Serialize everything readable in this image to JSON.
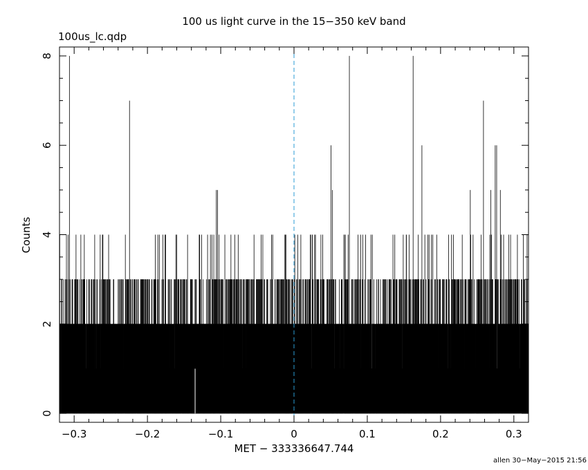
{
  "chart_data": {
    "type": "bar",
    "title": "100 us light curve in the 15−350 keV band",
    "filename": "100us_lc.qdp",
    "xlabel": "MET − 333336647.744",
    "ylabel": "Counts",
    "xlim": [
      -0.32,
      0.32
    ],
    "ylim": [
      -0.2,
      8.2
    ],
    "x_ticks": [
      -0.3,
      -0.2,
      -0.1,
      0,
      0.1,
      0.2,
      0.3
    ],
    "x_tick_labels": [
      "−0.3",
      "−0.2",
      "−0.1",
      "0",
      "0.1",
      "0.2",
      "0.3"
    ],
    "y_ticks": [
      0,
      2,
      4,
      6,
      8
    ],
    "y_tick_labels": [
      "0",
      "2",
      "4",
      "6",
      "8"
    ],
    "bin_width": 0.0001,
    "baseline_counts": 1,
    "reference_line": {
      "x": 0,
      "style": "dashed",
      "color": "#2a9bd4"
    },
    "notable_bins": [
      {
        "x": -0.3065,
        "y": 8
      },
      {
        "x": -0.2245,
        "y": 7
      },
      {
        "x": -0.106,
        "y": 5
      },
      {
        "x": -0.1045,
        "y": 5
      },
      {
        "x": 0.0505,
        "y": 6
      },
      {
        "x": 0.0755,
        "y": 8
      },
      {
        "x": 0.1625,
        "y": 8
      },
      {
        "x": 0.1745,
        "y": 6
      },
      {
        "x": 0.2585,
        "y": 7
      },
      {
        "x": 0.2745,
        "y": 6
      },
      {
        "x": 0.2765,
        "y": 6
      },
      {
        "x": 0.0525,
        "y": 5
      },
      {
        "x": 0.2405,
        "y": 5
      },
      {
        "x": 0.2685,
        "y": 5
      },
      {
        "x": 0.2815,
        "y": 5
      },
      {
        "x": -0.012,
        "y": 4
      },
      {
        "x": 0.001,
        "y": 4
      },
      {
        "x": -0.272,
        "y": 4
      },
      {
        "x": -0.253,
        "y": 4
      },
      {
        "x": -0.118,
        "y": 4
      },
      {
        "x": 0.149,
        "y": 4
      },
      {
        "x": 0.1875,
        "y": 4
      },
      {
        "x": 0.286,
        "y": 4
      },
      {
        "x": 0.318,
        "y": 4
      }
    ],
    "series_note": "counts per 100 us bin, mostly 0-3",
    "color": "#000000"
  },
  "footer": {
    "stamp": "allen 30−May−2015 21:56"
  }
}
